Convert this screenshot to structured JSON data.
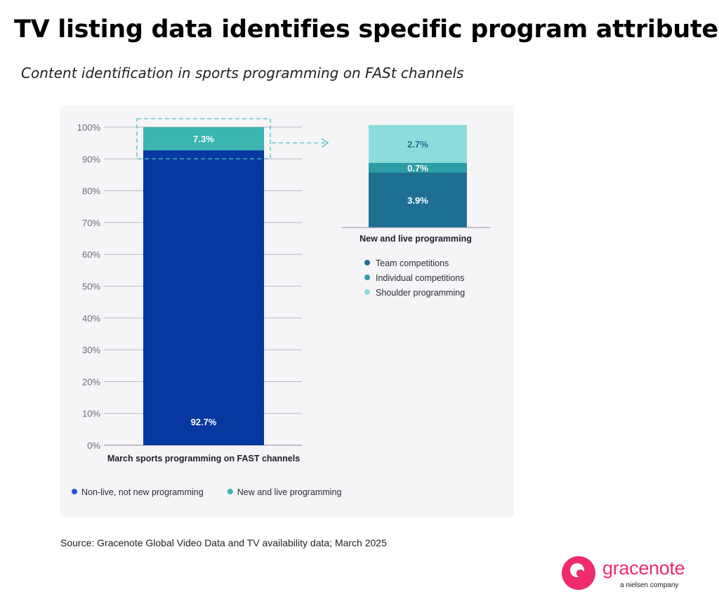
{
  "header": {
    "title": "TV listing data identifies specific program attributes",
    "subtitle": "Content identification in sports programming on FASt channels"
  },
  "footer": {
    "source": "Source: Gracenote Global Video Data and TV availability data; March 2025"
  },
  "logo": {
    "name": "gracenote",
    "tagline": "a nielsen company",
    "color": "#ee2b6c"
  },
  "chart_data": [
    {
      "type": "bar",
      "stacked": true,
      "categories": [
        "March sports programming on FAST channels"
      ],
      "series": [
        {
          "name": "Non-live, not new programming",
          "values": [
            92.7
          ],
          "color": "#0737a0",
          "label": "92.7%"
        },
        {
          "name": "New and live programming",
          "values": [
            7.3
          ],
          "color": "#3ab5b0",
          "label": "7.3%"
        }
      ],
      "ylim": [
        0,
        100
      ],
      "yticks": [
        "0%",
        "10%",
        "20%",
        "30%",
        "40%",
        "50%",
        "60%",
        "70%",
        "80%",
        "90%",
        "100%"
      ],
      "grid": true,
      "legend_placement": "bottom"
    },
    {
      "type": "bar",
      "stacked": true,
      "categories": [
        "New and live programming"
      ],
      "series": [
        {
          "name": "Team competitions",
          "values": [
            3.9
          ],
          "color": "#1e7093",
          "label": "3.9%"
        },
        {
          "name": "Individual competitions",
          "values": [
            0.7
          ],
          "color": "#2a9ea4",
          "label": "0.7%"
        },
        {
          "name": "Shoulder programming",
          "values": [
            2.7
          ],
          "color": "#8ddcdc",
          "label": "2.7%"
        }
      ],
      "legend_placement": "bottom"
    }
  ]
}
